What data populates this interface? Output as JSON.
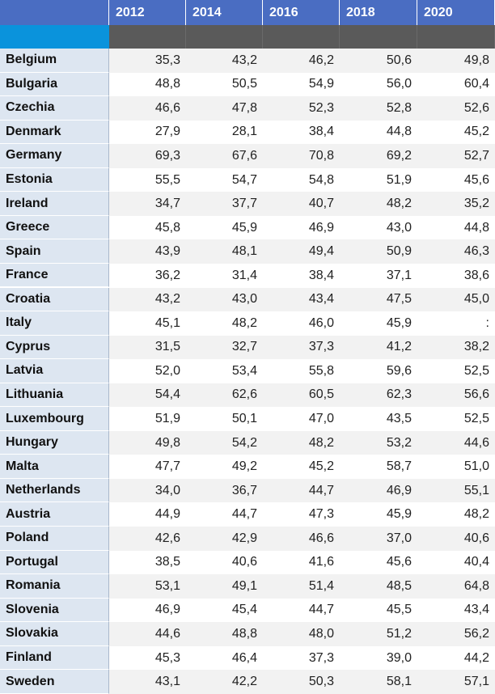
{
  "table": {
    "columns": [
      "2012",
      "2014",
      "2016",
      "2018",
      "2020"
    ],
    "rows": [
      [
        "Belgium",
        "35,3",
        "43,2",
        "46,2",
        "50,6",
        "49,8"
      ],
      [
        "Bulgaria",
        "48,8",
        "50,5",
        "54,9",
        "56,0",
        "60,4"
      ],
      [
        "Czechia",
        "46,6",
        "47,8",
        "52,3",
        "52,8",
        "52,6"
      ],
      [
        "Denmark",
        "27,9",
        "28,1",
        "38,4",
        "44,8",
        "45,2"
      ],
      [
        "Germany",
        "69,3",
        "67,6",
        "70,8",
        "69,2",
        "52,7"
      ],
      [
        "Estonia",
        "55,5",
        "54,7",
        "54,8",
        "51,9",
        "45,6"
      ],
      [
        "Ireland",
        "34,7",
        "37,7",
        "40,7",
        "48,2",
        "35,2"
      ],
      [
        "Greece",
        "45,8",
        "45,9",
        "46,9",
        "43,0",
        "44,8"
      ],
      [
        "Spain",
        "43,9",
        "48,1",
        "49,4",
        "50,9",
        "46,3"
      ],
      [
        "France",
        "36,2",
        "31,4",
        "38,4",
        "37,1",
        "38,6"
      ],
      [
        "Croatia",
        "43,2",
        "43,0",
        "43,4",
        "47,5",
        "45,0"
      ],
      [
        "Italy",
        "45,1",
        "48,2",
        "46,0",
        "45,9",
        ":"
      ],
      [
        "Cyprus",
        "31,5",
        "32,7",
        "37,3",
        "41,2",
        "38,2"
      ],
      [
        "Latvia",
        "52,0",
        "53,4",
        "55,8",
        "59,6",
        "52,5"
      ],
      [
        "Lithuania",
        "54,4",
        "62,6",
        "60,5",
        "62,3",
        "56,6"
      ],
      [
        "Luxembourg",
        "51,9",
        "50,1",
        "47,0",
        "43,5",
        "52,5"
      ],
      [
        "Hungary",
        "49,8",
        "54,2",
        "48,2",
        "53,2",
        "44,6"
      ],
      [
        "Malta",
        "47,7",
        "49,2",
        "45,2",
        "58,7",
        "51,0"
      ],
      [
        "Netherlands",
        "34,0",
        "36,7",
        "44,7",
        "46,9",
        "55,1"
      ],
      [
        "Austria",
        "44,9",
        "44,7",
        "47,3",
        "45,9",
        "48,2"
      ],
      [
        "Poland",
        "42,6",
        "42,9",
        "46,6",
        "37,0",
        "40,6"
      ],
      [
        "Portugal",
        "38,5",
        "40,6",
        "41,6",
        "45,6",
        "40,4"
      ],
      [
        "Romania",
        "53,1",
        "49,1",
        "51,4",
        "48,5",
        "64,8"
      ],
      [
        "Slovenia",
        "46,9",
        "45,4",
        "44,7",
        "45,5",
        "43,4"
      ],
      [
        "Slovakia",
        "44,6",
        "48,8",
        "48,0",
        "51,2",
        "56,2"
      ],
      [
        "Finland",
        "45,3",
        "46,4",
        "37,3",
        "39,0",
        "44,2"
      ],
      [
        "Sweden",
        "43,1",
        "42,2",
        "50,3",
        "58,1",
        "57,1"
      ]
    ]
  }
}
